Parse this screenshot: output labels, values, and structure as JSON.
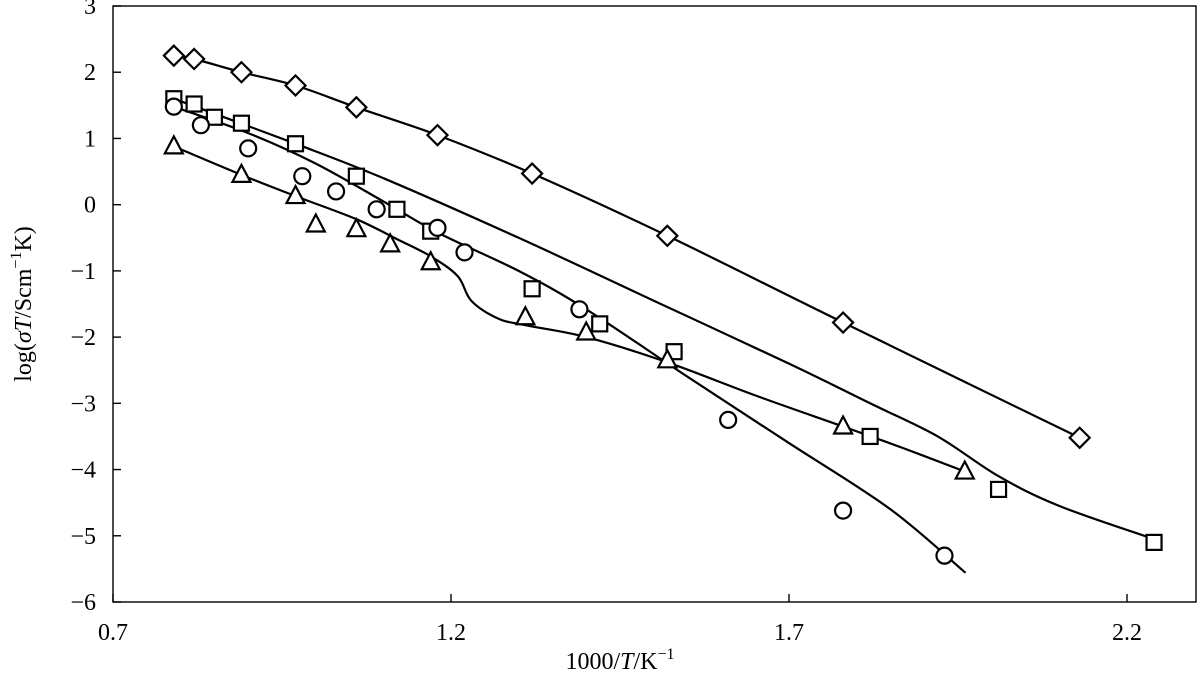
{
  "chart_data": {
    "type": "scatter",
    "title": "",
    "xlabel_parts": [
      "1000/",
      "T",
      "/K",
      "−1"
    ],
    "ylabel_parts": [
      "log(",
      "σ",
      "T",
      "/Scm",
      "−1",
      "K)"
    ],
    "xlim": [
      0.7,
      2.25
    ],
    "ylim": [
      -6,
      3
    ],
    "xticks": [
      0.7,
      1.2,
      1.7,
      2.2
    ],
    "xtick_labels": [
      "0.7",
      "1.2",
      "1.7",
      "2.2"
    ],
    "yticks": [
      3,
      2,
      1,
      0,
      -1,
      -2,
      -3,
      -4,
      -5,
      -6
    ],
    "ytick_labels": [
      "3",
      "2",
      "1",
      "0",
      "−1",
      "−2",
      "−3",
      "−4",
      "−5",
      "−6"
    ],
    "grid": false,
    "legend": "none",
    "series": [
      {
        "marker": "diamond",
        "points": [
          [
            0.79,
            2.25
          ],
          [
            0.82,
            2.2
          ],
          [
            0.89,
            2.0
          ],
          [
            0.97,
            1.8
          ],
          [
            1.06,
            1.47
          ],
          [
            1.18,
            1.05
          ],
          [
            1.32,
            0.47
          ],
          [
            1.52,
            -0.47
          ],
          [
            1.78,
            -1.78
          ],
          [
            2.13,
            -3.52
          ]
        ],
        "curve": [
          [
            0.79,
            2.25
          ],
          [
            0.82,
            2.2
          ],
          [
            0.89,
            2.0
          ],
          [
            0.97,
            1.8
          ],
          [
            1.06,
            1.47
          ],
          [
            1.18,
            1.05
          ],
          [
            1.32,
            0.47
          ],
          [
            1.52,
            -0.47
          ],
          [
            1.78,
            -1.78
          ],
          [
            2.13,
            -3.52
          ]
        ]
      },
      {
        "marker": "square",
        "points": [
          [
            0.79,
            1.6
          ],
          [
            0.82,
            1.52
          ],
          [
            0.85,
            1.32
          ],
          [
            0.89,
            1.23
          ],
          [
            0.97,
            0.92
          ],
          [
            1.06,
            0.43
          ],
          [
            1.12,
            -0.07
          ],
          [
            1.17,
            -0.4
          ],
          [
            1.32,
            -1.27
          ],
          [
            1.42,
            -1.8
          ],
          [
            1.53,
            -2.22
          ],
          [
            1.82,
            -3.5
          ],
          [
            2.01,
            -4.3
          ],
          [
            2.24,
            -5.1
          ]
        ],
        "curve": [
          [
            0.79,
            1.6
          ],
          [
            0.97,
            0.92
          ],
          [
            1.1,
            0.4
          ],
          [
            1.3,
            -0.5
          ],
          [
            1.5,
            -1.45
          ],
          [
            1.7,
            -2.4
          ],
          [
            1.82,
            -3.0
          ],
          [
            1.92,
            -3.5
          ],
          [
            2.01,
            -4.1
          ],
          [
            2.1,
            -4.55
          ],
          [
            2.24,
            -5.05
          ]
        ]
      },
      {
        "marker": "circle",
        "points": [
          [
            0.79,
            1.48
          ],
          [
            0.83,
            1.2
          ],
          [
            0.9,
            0.85
          ],
          [
            0.98,
            0.43
          ],
          [
            1.03,
            0.2
          ],
          [
            1.09,
            -0.07
          ],
          [
            1.18,
            -0.35
          ],
          [
            1.22,
            -0.72
          ],
          [
            1.39,
            -1.58
          ],
          [
            1.61,
            -3.25
          ],
          [
            1.78,
            -4.62
          ],
          [
            1.93,
            -5.3
          ]
        ],
        "curve": [
          [
            0.79,
            1.48
          ],
          [
            0.9,
            1.08
          ],
          [
            1.0,
            0.62
          ],
          [
            1.1,
            0.05
          ],
          [
            1.18,
            -0.42
          ],
          [
            1.3,
            -1.0
          ],
          [
            1.4,
            -1.58
          ],
          [
            1.55,
            -2.6
          ],
          [
            1.7,
            -3.6
          ],
          [
            1.85,
            -4.6
          ],
          [
            1.96,
            -5.55
          ]
        ]
      },
      {
        "marker": "triangle",
        "points": [
          [
            0.79,
            0.88
          ],
          [
            0.89,
            0.45
          ],
          [
            0.97,
            0.13
          ],
          [
            1.0,
            -0.3
          ],
          [
            1.06,
            -0.37
          ],
          [
            1.11,
            -0.6
          ],
          [
            1.17,
            -0.87
          ],
          [
            1.31,
            -1.7
          ],
          [
            1.4,
            -1.93
          ],
          [
            1.52,
            -2.35
          ],
          [
            1.78,
            -3.35
          ],
          [
            1.96,
            -4.03
          ]
        ],
        "curve": [
          [
            0.79,
            0.88
          ],
          [
            0.89,
            0.45
          ],
          [
            0.97,
            0.13
          ],
          [
            1.06,
            -0.22
          ],
          [
            1.12,
            -0.52
          ],
          [
            1.17,
            -0.78
          ],
          [
            1.21,
            -1.08
          ],
          [
            1.23,
            -1.45
          ],
          [
            1.27,
            -1.72
          ],
          [
            1.31,
            -1.82
          ],
          [
            1.4,
            -2.0
          ],
          [
            1.52,
            -2.38
          ],
          [
            1.65,
            -2.88
          ],
          [
            1.78,
            -3.35
          ],
          [
            1.87,
            -3.68
          ],
          [
            1.96,
            -4.03
          ]
        ]
      }
    ]
  }
}
